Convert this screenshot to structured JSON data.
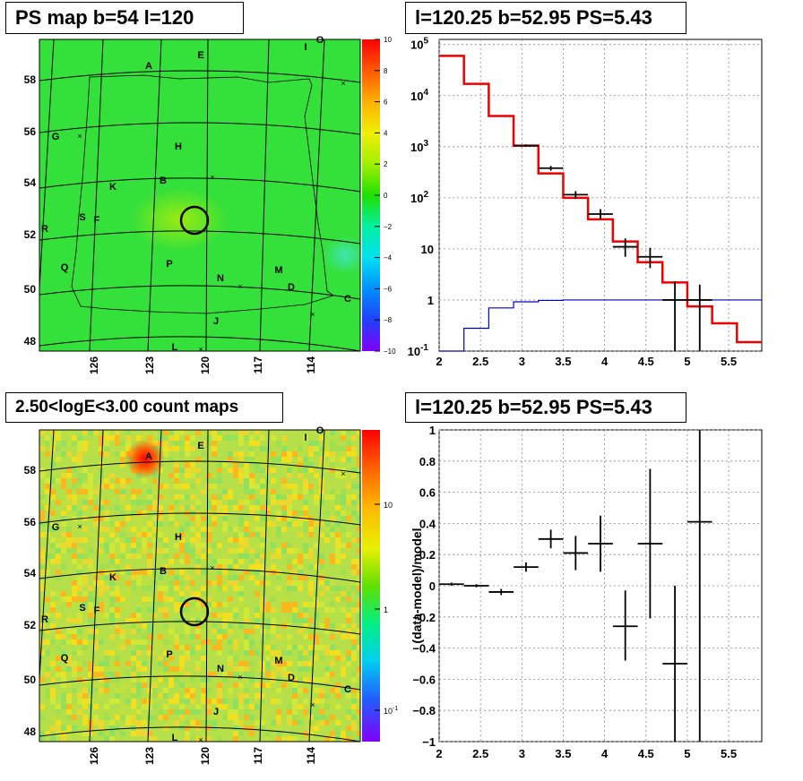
{
  "panels": {
    "tl_title": "PS map b=54 l=120",
    "tr_title": "l=120.25 b=52.95 PS=5.43",
    "bl_title": "2.50<logE<3.00 count maps",
    "br_title": "l=120.25 b=52.95 PS=5.43"
  },
  "chart_data": [
    {
      "type": "heatmap",
      "title": "PS map b=54 l=120",
      "colorbar_ticks": [
        "10",
        "8",
        "6",
        "4",
        "2",
        "0",
        "−2",
        "−4",
        "−6",
        "−8",
        "−10"
      ],
      "colorbar_range": [
        -10,
        10
      ],
      "lon_ticks": [
        "126",
        "123",
        "120",
        "117",
        "114"
      ],
      "lat_ticks": [
        "58",
        "56",
        "54",
        "52",
        "50",
        "48"
      ],
      "source_labels": [
        "A",
        "E",
        "I",
        "O",
        "G",
        "H",
        "B",
        "K",
        "S",
        "F",
        "R",
        "Q",
        "P",
        "N",
        "M",
        "D",
        "C",
        "J",
        "L"
      ],
      "circle_center": {
        "l": 120.25,
        "b": 52.95
      }
    },
    {
      "type": "line",
      "title": "l=120.25 b=52.95 PS=5.43",
      "x_ticks": [
        "2",
        "2.5",
        "3",
        "3.5",
        "4",
        "4.5",
        "5",
        "5.5"
      ],
      "y_ticks": [
        "10^-1",
        "1",
        "10",
        "10^2",
        "10^3",
        "10^4",
        "10^5"
      ],
      "xlim": [
        2,
        5.9
      ],
      "ylim_log10": [
        -1,
        5.1
      ],
      "scale": "log-y",
      "model_red": {
        "edges": [
          2,
          2.3,
          2.6,
          2.9,
          3.2,
          3.5,
          3.8,
          4.1,
          4.4,
          4.7,
          5.0,
          5.3,
          5.6,
          5.9
        ],
        "values": [
          60000,
          17000,
          4000,
          1050,
          300,
          100,
          38,
          14,
          5.5,
          2.2,
          0.75,
          0.35,
          0.15
        ]
      },
      "background_blue": {
        "edges": [
          2,
          2.3,
          2.6,
          2.9,
          3.2,
          3.5,
          3.8,
          4.1,
          4.4,
          4.7,
          5.0,
          5.3,
          5.6,
          5.9
        ],
        "values": [
          0.02,
          0.28,
          0.7,
          0.92,
          0.98,
          1,
          1,
          1,
          1,
          1,
          1,
          1,
          1
        ]
      },
      "data_points": [
        {
          "x": 3.05,
          "y": 1050,
          "xerr": 0.15,
          "ylo": 1000,
          "yhi": 1110
        },
        {
          "x": 3.35,
          "y": 380,
          "xerr": 0.15,
          "ylo": 340,
          "yhi": 420
        },
        {
          "x": 3.65,
          "y": 115,
          "xerr": 0.15,
          "ylo": 95,
          "yhi": 135
        },
        {
          "x": 3.95,
          "y": 48,
          "xerr": 0.15,
          "ylo": 38,
          "yhi": 60
        },
        {
          "x": 4.25,
          "y": 11,
          "xerr": 0.15,
          "ylo": 7,
          "yhi": 16
        },
        {
          "x": 4.55,
          "y": 7,
          "xerr": 0.15,
          "ylo": 4.2,
          "yhi": 10.5
        },
        {
          "x": 4.85,
          "y": 1,
          "xerr": 0.15,
          "ylo": 0.1,
          "yhi": 2.3
        },
        {
          "x": 5.15,
          "y": 1,
          "xerr": 0.15,
          "ylo": 0.1,
          "yhi": 2.0
        }
      ]
    },
    {
      "type": "heatmap",
      "title": "2.50<logE<3.00 count maps",
      "colorbar_ticks": [
        "10",
        "1",
        "10^-1"
      ],
      "scale": "log",
      "lon_ticks": [
        "126",
        "123",
        "120",
        "117",
        "114"
      ],
      "lat_ticks": [
        "58",
        "56",
        "54",
        "52",
        "50",
        "48"
      ],
      "source_labels": [
        "A",
        "E",
        "I",
        "O",
        "G",
        "H",
        "B",
        "K",
        "S",
        "F",
        "R",
        "Q",
        "P",
        "N",
        "M",
        "D",
        "C",
        "J",
        "L"
      ]
    },
    {
      "type": "scatter",
      "title": "l=120.25 b=52.95 PS=5.43",
      "ylabel": "(data-model)/model",
      "x_ticks": [
        "2",
        "2.5",
        "3",
        "3.5",
        "4",
        "4.5",
        "5",
        "5.5"
      ],
      "y_ticks": [
        "1",
        "0.8",
        "0.6",
        "0.4",
        "0.2",
        "0",
        "−0.2",
        "−0.4",
        "−0.6",
        "−0.8",
        "−1"
      ],
      "xlim": [
        2,
        5.9
      ],
      "ylim": [
        -1,
        1
      ],
      "points": [
        {
          "x": 2.15,
          "y": 0.01,
          "xerr": 0.15,
          "ylo": 0.0,
          "yhi": 0.02
        },
        {
          "x": 2.45,
          "y": 0.0,
          "xerr": 0.15,
          "ylo": -0.01,
          "yhi": 0.01
        },
        {
          "x": 2.75,
          "y": -0.04,
          "xerr": 0.15,
          "ylo": -0.06,
          "yhi": -0.02
        },
        {
          "x": 3.05,
          "y": 0.12,
          "xerr": 0.15,
          "ylo": 0.09,
          "yhi": 0.15
        },
        {
          "x": 3.35,
          "y": 0.3,
          "xerr": 0.15,
          "ylo": 0.24,
          "yhi": 0.36
        },
        {
          "x": 3.65,
          "y": 0.21,
          "xerr": 0.15,
          "ylo": 0.1,
          "yhi": 0.32
        },
        {
          "x": 3.95,
          "y": 0.27,
          "xerr": 0.15,
          "ylo": 0.09,
          "yhi": 0.45
        },
        {
          "x": 4.25,
          "y": -0.26,
          "xerr": 0.15,
          "ylo": -0.48,
          "yhi": -0.03
        },
        {
          "x": 4.55,
          "y": 0.27,
          "xerr": 0.15,
          "ylo": -0.21,
          "yhi": 0.75
        },
        {
          "x": 4.85,
          "y": -0.5,
          "xerr": 0.15,
          "ylo": -1.0,
          "yhi": 0.0
        },
        {
          "x": 5.15,
          "y": 0.41,
          "xerr": 0.15,
          "ylo": -1.0,
          "yhi": 1.0
        }
      ]
    }
  ]
}
